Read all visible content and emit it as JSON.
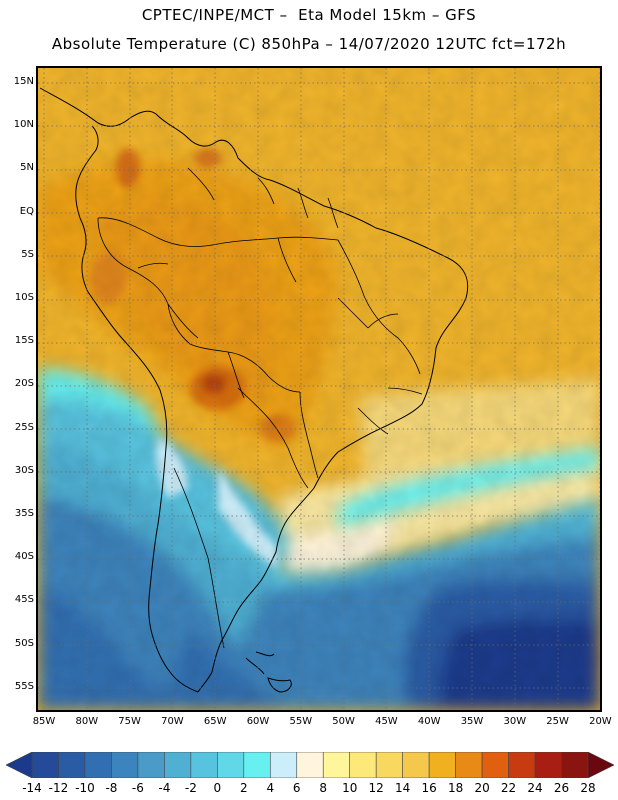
{
  "header": {
    "line1": "CPTEC/INPE/MCT –  Eta Model 15km – GFS",
    "line2": "Absolute Temperature (C) 850hPa – 14/07/2020 12UTC fct=172h"
  },
  "map": {
    "lat_labels": [
      "15N",
      "10N",
      "5N",
      "EQ",
      "5S",
      "10S",
      "15S",
      "20S",
      "25S",
      "30S",
      "35S",
      "40S",
      "45S",
      "50S",
      "55S"
    ],
    "lon_labels": [
      "85W",
      "80W",
      "75W",
      "70W",
      "65W",
      "60W",
      "55W",
      "50W",
      "45W",
      "40W",
      "35W",
      "30W",
      "25W",
      "20W"
    ]
  },
  "legend": {
    "levels": [
      "-14",
      "-12",
      "-10",
      "-8",
      "-6",
      "-4",
      "-2",
      "0",
      "2",
      "4",
      "6",
      "8",
      "10",
      "12",
      "14",
      "16",
      "18",
      "20",
      "22",
      "24",
      "26",
      "28"
    ],
    "colors": [
      "#1c3a8c",
      "#254b98",
      "#2a5ca6",
      "#326fb2",
      "#3c84bd",
      "#4a9bc7",
      "#4fb0d4",
      "#58c3df",
      "#60d8e8",
      "#66f0f0",
      "#cceefa",
      "#fff4dc",
      "#fff59a",
      "#fde87a",
      "#f9d860",
      "#f4c84a",
      "#f0b020",
      "#e88a16",
      "#e06010",
      "#c83a10",
      "#a81e12",
      "#8a1410",
      "#6a0810"
    ]
  }
}
